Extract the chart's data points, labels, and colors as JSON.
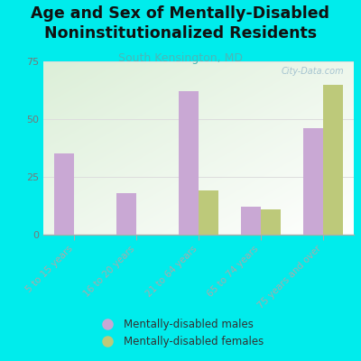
{
  "title": "Age and Sex of Mentally-Disabled\nNoninstitutionalized Residents",
  "subtitle": "South Kensington, MD",
  "categories": [
    "5 to 15 years",
    "16 to 20 years",
    "21 to 64 years",
    "65 to 74 years",
    "75 years and over"
  ],
  "males": [
    35,
    18,
    62,
    12,
    46
  ],
  "females": [
    0,
    0,
    19,
    11,
    65
  ],
  "male_color": "#c9a8d4",
  "female_color": "#bdc97a",
  "bg_color": "#00ecec",
  "plot_bg_top_left": "#dcefd8",
  "plot_bg_bottom_right": "#f8f8f0",
  "ylim": [
    0,
    75
  ],
  "yticks": [
    0,
    25,
    50,
    75
  ],
  "title_fontsize": 12.5,
  "subtitle_fontsize": 9,
  "subtitle_color": "#4ab8b8",
  "tick_label_color": "#777777",
  "legend_label_males": "Mentally-disabled males",
  "legend_label_females": "Mentally-disabled females",
  "bar_width": 0.32,
  "watermark": "City-Data.com",
  "watermark_color": "#99bbcc"
}
